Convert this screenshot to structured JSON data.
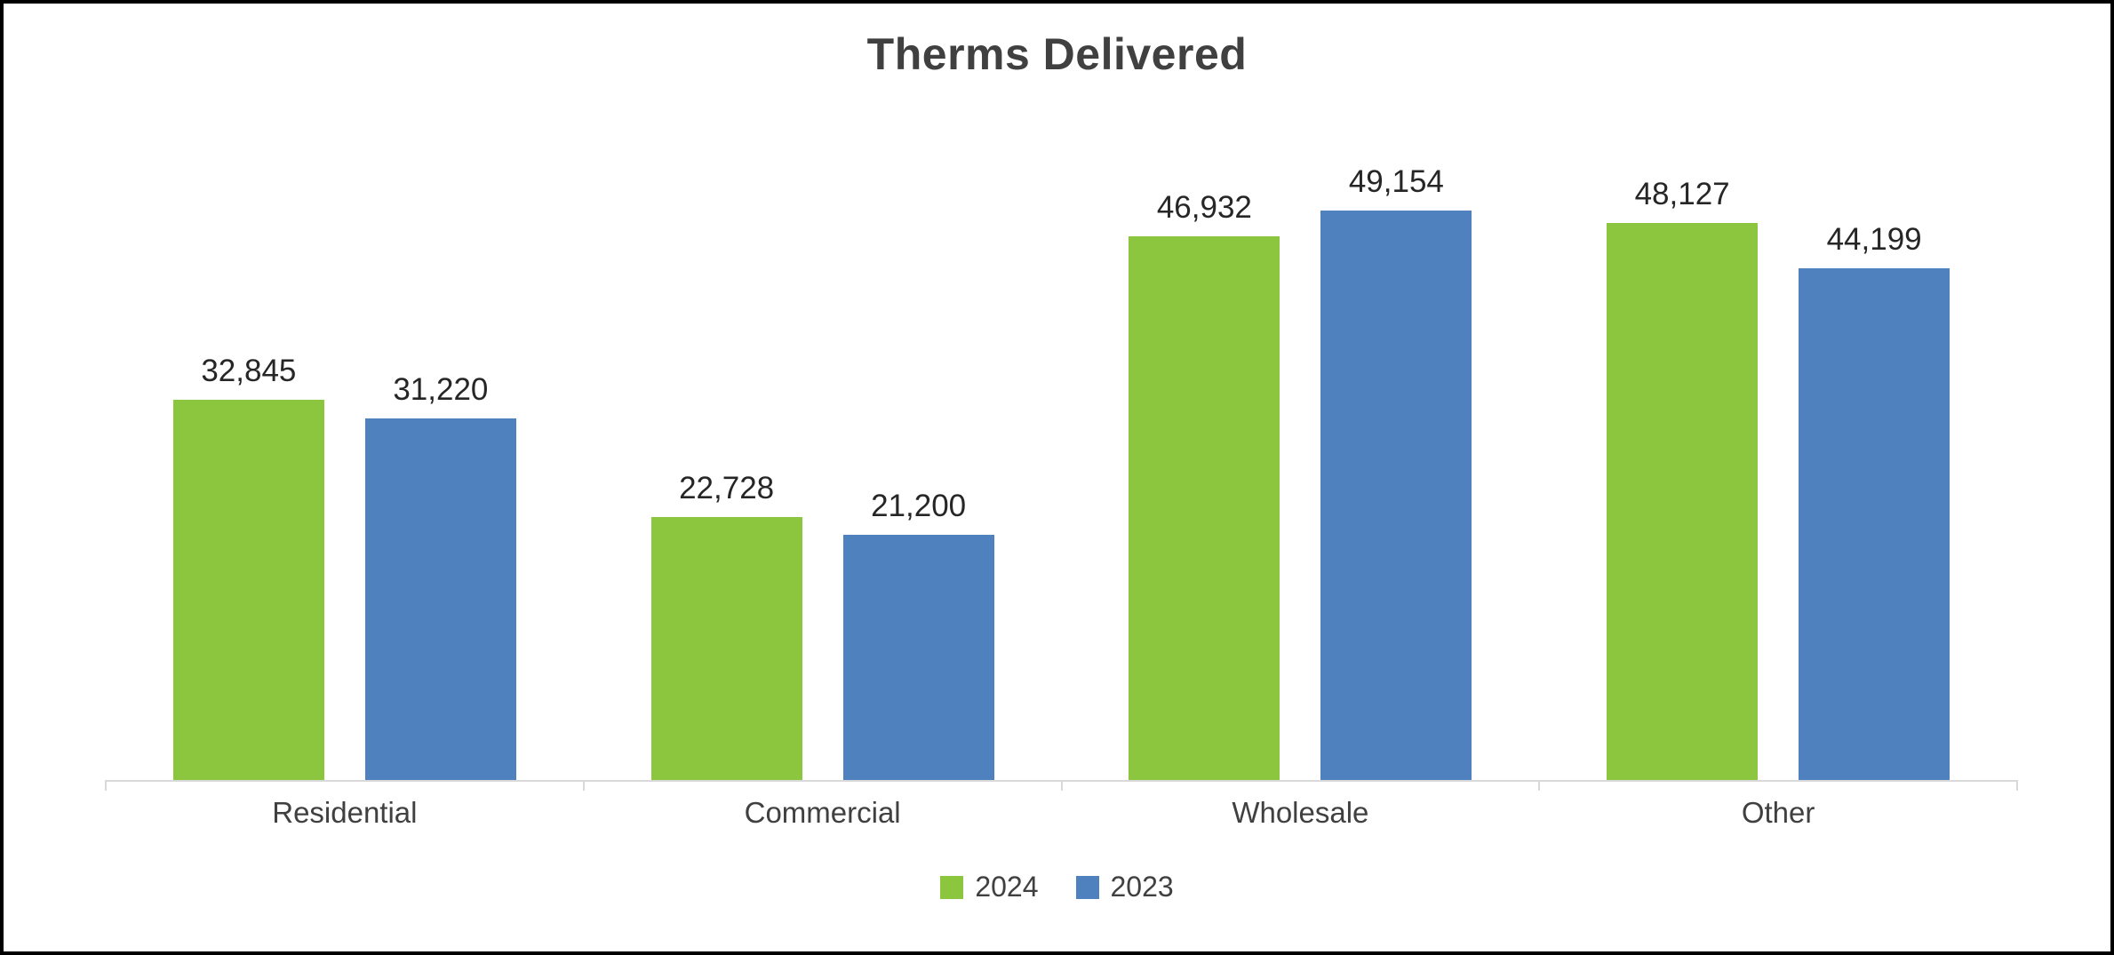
{
  "chart_data": {
    "type": "bar",
    "title": "Therms Delivered",
    "categories": [
      "Residential",
      "Commercial",
      "Wholesale",
      "Other"
    ],
    "series": [
      {
        "name": "2024",
        "color": "#8CC63E",
        "values": [
          32845,
          22728,
          46932,
          48127
        ]
      },
      {
        "name": "2023",
        "color": "#4E81BD",
        "values": [
          31220,
          21200,
          49154,
          44199
        ]
      }
    ],
    "value_labels": [
      [
        "32,845",
        "22,728",
        "46,932",
        "48,127"
      ],
      [
        "31,220",
        "21,200",
        "49,154",
        "44,199"
      ]
    ],
    "xlabel": "",
    "ylabel": "",
    "ylim": [
      0,
      58000
    ],
    "grid": false,
    "data_labels": true,
    "legend_position": "bottom"
  },
  "colors": {
    "title": "#404040",
    "data_label": "#262626",
    "axis_label": "#404040",
    "axis_line": "#d9d9d9",
    "border": "#000000",
    "background": "#ffffff"
  }
}
